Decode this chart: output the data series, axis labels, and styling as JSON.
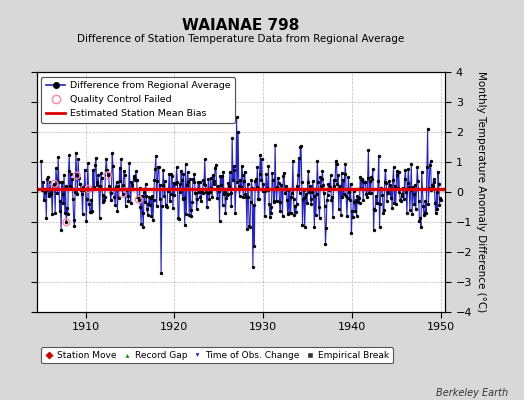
{
  "title": "WAIANAE 798",
  "subtitle": "Difference of Station Temperature Data from Regional Average",
  "ylabel": "Monthly Temperature Anomaly Difference (°C)",
  "xlabel_ticks": [
    1910,
    1920,
    1930,
    1940,
    1950
  ],
  "ylim": [
    -4,
    4
  ],
  "xlim": [
    1904.5,
    1950.5
  ],
  "yticks": [
    -4,
    -3,
    -2,
    -1,
    0,
    1,
    2,
    3,
    4
  ],
  "bias_line_y": 0.1,
  "line_color": "#2222cc",
  "dot_color": "#000000",
  "bias_color": "#dd0000",
  "qc_color": "#ff88aa",
  "background_color": "#d8d8d8",
  "plot_bg_color": "#ffffff",
  "watermark": "Berkeley Earth",
  "seed": 7
}
